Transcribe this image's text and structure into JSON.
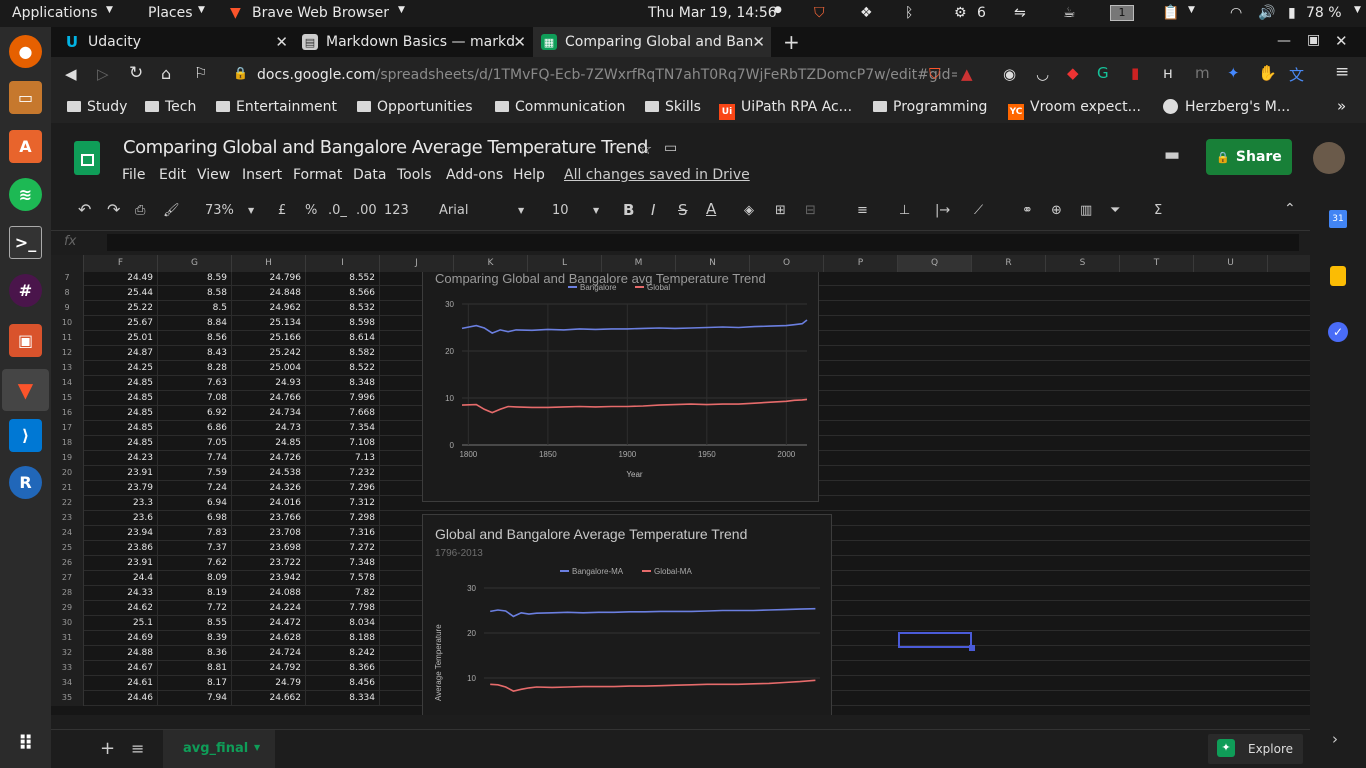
{
  "topbar": {
    "applications": "Applications",
    "places": "Places",
    "browser": "Brave Web Browser",
    "clock": "Thu Mar 19, 14:56",
    "workspace": "1",
    "cpu": "6",
    "battery": "78 %"
  },
  "tabs": [
    {
      "label": "Udacity",
      "icon": "U"
    },
    {
      "label": "Markdown Basics — markd",
      "icon": "▤"
    },
    {
      "label": "Comparing Global and Ban",
      "icon": "▦"
    }
  ],
  "address": {
    "host": "docs.google.com",
    "path": "/spreadsheets/d/1TMvFQ-Ecb-7ZWxrfRqTN7ahT0Rq7WjFeRbTZDomcP7w/edit#gid=..."
  },
  "bookmarks": [
    "Study",
    "Tech",
    "Entertainment",
    "Opportunities",
    "Communication",
    "Skills",
    "UiPath RPA Ac...",
    "Programming",
    "Vroom expect...",
    "Herzberg's M..."
  ],
  "sheet": {
    "title": "Comparing Global and Bangalore Average Temperature Trend",
    "menus": [
      "File",
      "Edit",
      "View",
      "Insert",
      "Format",
      "Data",
      "Tools",
      "Add-ons",
      "Help"
    ],
    "saved": "All changes saved in Drive",
    "share": "Share",
    "toolbar": {
      "zoom": "73%",
      "currency": "£",
      "percent": "%",
      "dec1": ".0_",
      "dec2": ".00",
      "format": "123",
      "font": "Arial",
      "size": "10"
    },
    "fx": "fx",
    "tab_name": "avg_final",
    "explore": "Explore"
  },
  "columns": [
    "F",
    "G",
    "H",
    "I",
    "J",
    "K",
    "L",
    "M",
    "N",
    "O",
    "P",
    "Q",
    "R",
    "S",
    "T",
    "U"
  ],
  "rows": [
    {
      "n": "7",
      "f": "24.49",
      "g": "8.59",
      "h": "24.796",
      "i": "8.552"
    },
    {
      "n": "8",
      "f": "25.44",
      "g": "8.58",
      "h": "24.848",
      "i": "8.566"
    },
    {
      "n": "9",
      "f": "25.22",
      "g": "8.5",
      "h": "24.962",
      "i": "8.532"
    },
    {
      "n": "10",
      "f": "25.67",
      "g": "8.84",
      "h": "25.134",
      "i": "8.598"
    },
    {
      "n": "11",
      "f": "25.01",
      "g": "8.56",
      "h": "25.166",
      "i": "8.614"
    },
    {
      "n": "12",
      "f": "24.87",
      "g": "8.43",
      "h": "25.242",
      "i": "8.582"
    },
    {
      "n": "13",
      "f": "24.25",
      "g": "8.28",
      "h": "25.004",
      "i": "8.522"
    },
    {
      "n": "14",
      "f": "24.85",
      "g": "7.63",
      "h": "24.93",
      "i": "8.348"
    },
    {
      "n": "15",
      "f": "24.85",
      "g": "7.08",
      "h": "24.766",
      "i": "7.996"
    },
    {
      "n": "16",
      "f": "24.85",
      "g": "6.92",
      "h": "24.734",
      "i": "7.668"
    },
    {
      "n": "17",
      "f": "24.85",
      "g": "6.86",
      "h": "24.73",
      "i": "7.354"
    },
    {
      "n": "18",
      "f": "24.85",
      "g": "7.05",
      "h": "24.85",
      "i": "7.108"
    },
    {
      "n": "19",
      "f": "24.23",
      "g": "7.74",
      "h": "24.726",
      "i": "7.13"
    },
    {
      "n": "20",
      "f": "23.91",
      "g": "7.59",
      "h": "24.538",
      "i": "7.232"
    },
    {
      "n": "21",
      "f": "23.79",
      "g": "7.24",
      "h": "24.326",
      "i": "7.296"
    },
    {
      "n": "22",
      "f": "23.3",
      "g": "6.94",
      "h": "24.016",
      "i": "7.312"
    },
    {
      "n": "23",
      "f": "23.6",
      "g": "6.98",
      "h": "23.766",
      "i": "7.298"
    },
    {
      "n": "24",
      "f": "23.94",
      "g": "7.83",
      "h": "23.708",
      "i": "7.316"
    },
    {
      "n": "25",
      "f": "23.86",
      "g": "7.37",
      "h": "23.698",
      "i": "7.272"
    },
    {
      "n": "26",
      "f": "23.91",
      "g": "7.62",
      "h": "23.722",
      "i": "7.348"
    },
    {
      "n": "27",
      "f": "24.4",
      "g": "8.09",
      "h": "23.942",
      "i": "7.578"
    },
    {
      "n": "28",
      "f": "24.33",
      "g": "8.19",
      "h": "24.088",
      "i": "7.82"
    },
    {
      "n": "29",
      "f": "24.62",
      "g": "7.72",
      "h": "24.224",
      "i": "7.798"
    },
    {
      "n": "30",
      "f": "25.1",
      "g": "8.55",
      "h": "24.472",
      "i": "8.034"
    },
    {
      "n": "31",
      "f": "24.69",
      "g": "8.39",
      "h": "24.628",
      "i": "8.188"
    },
    {
      "n": "32",
      "f": "24.88",
      "g": "8.36",
      "h": "24.724",
      "i": "8.242"
    },
    {
      "n": "33",
      "f": "24.67",
      "g": "8.81",
      "h": "24.792",
      "i": "8.366"
    },
    {
      "n": "34",
      "f": "24.61",
      "g": "8.17",
      "h": "24.79",
      "i": "8.456"
    },
    {
      "n": "35",
      "f": "24.46",
      "g": "7.94",
      "h": "24.662",
      "i": "8.334"
    }
  ],
  "chart_data": [
    {
      "type": "line",
      "title": "Comparing Global and Bangalore avg Temperature Trend",
      "xlabel": "Year",
      "ylabel": "",
      "xlim": [
        1796,
        2013
      ],
      "ylim": [
        0,
        30
      ],
      "xticks": [
        "1800",
        "1850",
        "1900",
        "1950",
        "2000"
      ],
      "yticks": [
        "0",
        "10",
        "20",
        "30"
      ],
      "x": [
        1796,
        1805,
        1810,
        1815,
        1820,
        1825,
        1830,
        1840,
        1850,
        1860,
        1870,
        1880,
        1890,
        1900,
        1910,
        1920,
        1930,
        1940,
        1950,
        1960,
        1970,
        1980,
        1990,
        2000,
        2005,
        2010,
        2013
      ],
      "series": [
        {
          "name": "Bangalore",
          "color": "#6b7fe0",
          "values": [
            24.8,
            25.4,
            24.9,
            23.8,
            24.5,
            24.1,
            24.5,
            24.4,
            24.6,
            24.5,
            24.7,
            24.6,
            24.7,
            24.7,
            24.8,
            24.9,
            24.8,
            24.9,
            25.0,
            25.1,
            25.0,
            25.2,
            25.3,
            25.4,
            25.6,
            25.8,
            26.6
          ]
        },
        {
          "name": "Global",
          "color": "#e66b6b",
          "values": [
            8.5,
            8.6,
            7.6,
            6.9,
            7.6,
            8.2,
            8.1,
            8.0,
            8.0,
            8.1,
            8.2,
            8.1,
            8.2,
            8.2,
            8.3,
            8.5,
            8.6,
            8.7,
            8.6,
            8.7,
            8.7,
            8.9,
            9.1,
            9.3,
            9.5,
            9.6,
            9.7
          ]
        }
      ]
    },
    {
      "type": "line",
      "title": "Global and Bangalore Average Temperature Trend",
      "subtitle": "1796-2013",
      "xlabel": "",
      "ylabel": "Average Temperature",
      "xlim": [
        1796,
        2013
      ],
      "ylim": [
        0,
        30
      ],
      "yticks": [
        "10",
        "20",
        "30"
      ],
      "x": [
        1800,
        1805,
        1810,
        1815,
        1820,
        1825,
        1830,
        1840,
        1850,
        1860,
        1870,
        1880,
        1890,
        1900,
        1910,
        1920,
        1930,
        1940,
        1950,
        1960,
        1970,
        1980,
        1990,
        2000,
        2010
      ],
      "series": [
        {
          "name": "Bangalore-MA",
          "color": "#6b7fe0",
          "values": [
            24.8,
            25.1,
            24.9,
            23.7,
            24.5,
            24.2,
            24.4,
            24.5,
            24.6,
            24.5,
            24.6,
            24.6,
            24.7,
            24.7,
            24.8,
            24.8,
            24.8,
            24.9,
            25.0,
            25.0,
            25.0,
            25.1,
            25.2,
            25.3,
            25.4
          ]
        },
        {
          "name": "Global-MA",
          "color": "#e66b6b",
          "values": [
            8.6,
            8.5,
            8.0,
            7.1,
            7.5,
            7.8,
            8.0,
            7.9,
            8.0,
            8.1,
            8.1,
            8.1,
            8.2,
            8.2,
            8.3,
            8.4,
            8.5,
            8.6,
            8.6,
            8.6,
            8.7,
            8.8,
            9.0,
            9.2,
            9.5
          ]
        }
      ]
    }
  ]
}
